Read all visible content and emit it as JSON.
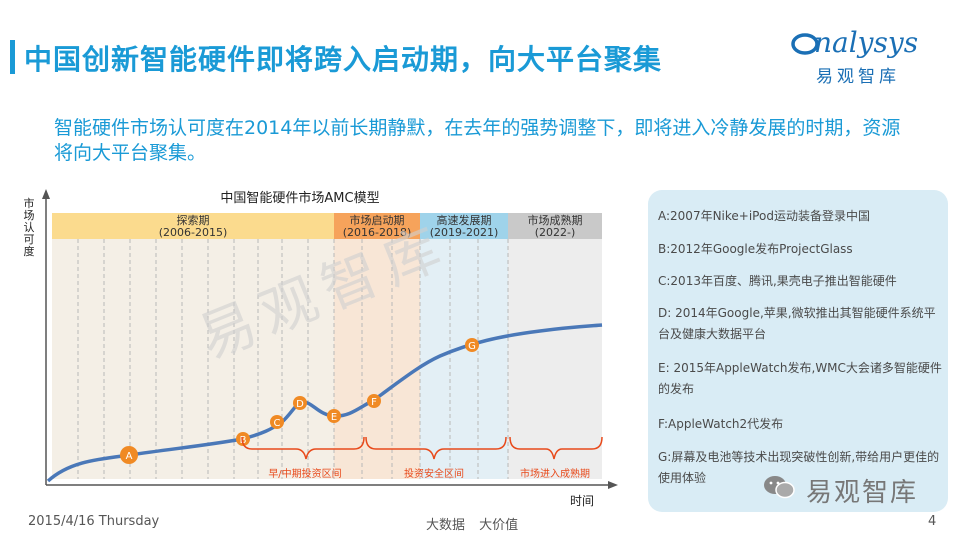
{
  "slide": {
    "title": "中国创新智能硬件即将跨入启动期，向大平台聚集",
    "subtitle": "智能硬件市场认可度在2014年以前长期静默，在去年的强势调整下，即将进入冷静发展的时期，资源将向大平台聚集。",
    "logo_en": "nalysys",
    "logo_cn": "易观智库",
    "watermark": "易观智库"
  },
  "diagram": {
    "title": "中国智能硬件市场AMC模型",
    "y_axis_label": [
      "市",
      "场",
      "认",
      "可",
      "度"
    ],
    "x_axis_label": "时间",
    "phases": [
      {
        "name": "探索期",
        "years": "(2006-2015)",
        "color": "#fbdb8e",
        "bg": "#f3eee4"
      },
      {
        "name": "市场启动期",
        "years": "(2016-2018)",
        "color": "#f6a35b",
        "bg": "#f7e8d8"
      },
      {
        "name": "高速发展期",
        "years": "(2019-2021)",
        "color": "#9fd3ea",
        "bg": "#e2eef4"
      },
      {
        "name": "市场成熟期",
        "years": "(2022-)",
        "color": "#c9c9c9",
        "bg": "#ececec"
      }
    ],
    "points": [
      "A",
      "B",
      "C",
      "D",
      "E",
      "F",
      "G"
    ],
    "brackets": [
      "早/中期投资区间",
      "投资安全区间",
      "市场进入成熟期"
    ]
  },
  "events": [
    "A:2007年Nike+iPod运动装备登录中国",
    "B:2012年Google发布ProjectGlass",
    "C:2013年百度、腾讯,果壳电子推出智能硬件",
    "D: 2014年Google,苹果,微软推出其智能硬件系统平台及健康大数据平台",
    "E: 2015年AppleWatch发布,WMC大会诸多智能硬件的发布",
    "F:AppleWatch2代发布",
    "G:屏幕及电池等技术出现突破性创新,带给用户更佳的使用体验"
  ],
  "footer": {
    "date": "2015/4/16 Thursday",
    "center": "大数据  大价值",
    "page": "4",
    "wechat_watermark": "易观智库"
  },
  "colors": {
    "accent": "#1a9ad6",
    "curve": "#4a78b8",
    "marker": "#f08a24",
    "bracket": "#e84a1b"
  }
}
